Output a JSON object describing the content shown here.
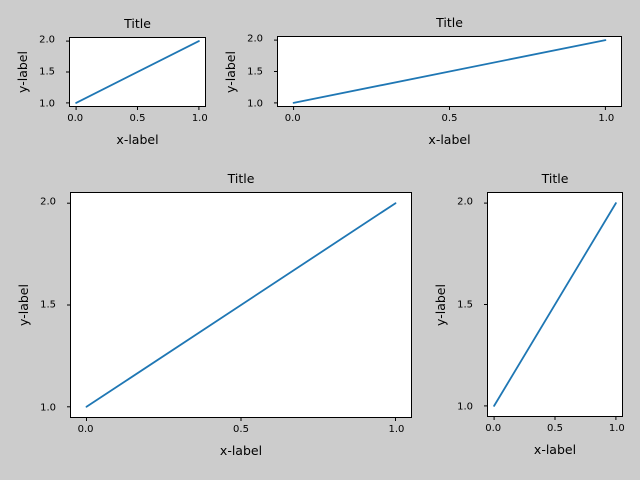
{
  "figure": {
    "background_color": "#cccccc",
    "axes_background_color": "#ffffff",
    "axes_edge_color": "#000000",
    "text_color": "#000000",
    "line_color": "#1f77b4"
  },
  "chart_data": [
    {
      "position": "top-left",
      "type": "line",
      "title": "Title",
      "xlabel": "x-label",
      "ylabel": "y-label",
      "x": [
        0.0,
        1.0
      ],
      "y": [
        1.0,
        2.0
      ],
      "xlim": [
        -0.05,
        1.05
      ],
      "ylim": [
        0.95,
        2.05
      ],
      "xticks": {
        "values": [
          0.0,
          0.5,
          1.0
        ],
        "labels": [
          "0.0",
          "0.5",
          "1.0"
        ]
      },
      "yticks": {
        "values": [
          1.0,
          1.5,
          2.0
        ],
        "labels": [
          "1.0",
          "1.5",
          "2.0"
        ]
      },
      "grid": false,
      "legend": null,
      "line_color": "#1f77b4"
    },
    {
      "position": "top-right",
      "type": "line",
      "title": "Title",
      "xlabel": "x-label",
      "ylabel": "y-label",
      "x": [
        0.0,
        1.0
      ],
      "y": [
        1.0,
        2.0
      ],
      "xlim": [
        -0.05,
        1.05
      ],
      "ylim": [
        0.95,
        2.05
      ],
      "xticks": {
        "values": [
          0.0,
          0.5,
          1.0
        ],
        "labels": [
          "0.0",
          "0.5",
          "1.0"
        ]
      },
      "yticks": {
        "values": [
          1.0,
          1.5,
          2.0
        ],
        "labels": [
          "1.0",
          "1.5",
          "2.0"
        ]
      },
      "grid": false,
      "legend": null,
      "line_color": "#1f77b4"
    },
    {
      "position": "bottom-left",
      "type": "line",
      "title": "Title",
      "xlabel": "x-label",
      "ylabel": "y-label",
      "x": [
        0.0,
        1.0
      ],
      "y": [
        1.0,
        2.0
      ],
      "xlim": [
        -0.05,
        1.05
      ],
      "ylim": [
        0.95,
        2.05
      ],
      "xticks": {
        "values": [
          0.0,
          0.5,
          1.0
        ],
        "labels": [
          "0.0",
          "0.5",
          "1.0"
        ]
      },
      "yticks": {
        "values": [
          1.0,
          1.5,
          2.0
        ],
        "labels": [
          "1.0",
          "1.5",
          "2.0"
        ]
      },
      "grid": false,
      "legend": null,
      "line_color": "#1f77b4"
    },
    {
      "position": "bottom-right",
      "type": "line",
      "title": "Title",
      "xlabel": "x-label",
      "ylabel": "y-label",
      "x": [
        0.0,
        1.0
      ],
      "y": [
        1.0,
        2.0
      ],
      "xlim": [
        -0.05,
        1.05
      ],
      "ylim": [
        0.95,
        2.05
      ],
      "xticks": {
        "values": [
          0.0,
          0.5,
          1.0
        ],
        "labels": [
          "0.0",
          "0.5",
          "1.0"
        ]
      },
      "yticks": {
        "values": [
          1.0,
          1.5,
          2.0
        ],
        "labels": [
          "1.0",
          "1.5",
          "2.0"
        ]
      },
      "grid": false,
      "legend": null,
      "line_color": "#1f77b4"
    }
  ]
}
